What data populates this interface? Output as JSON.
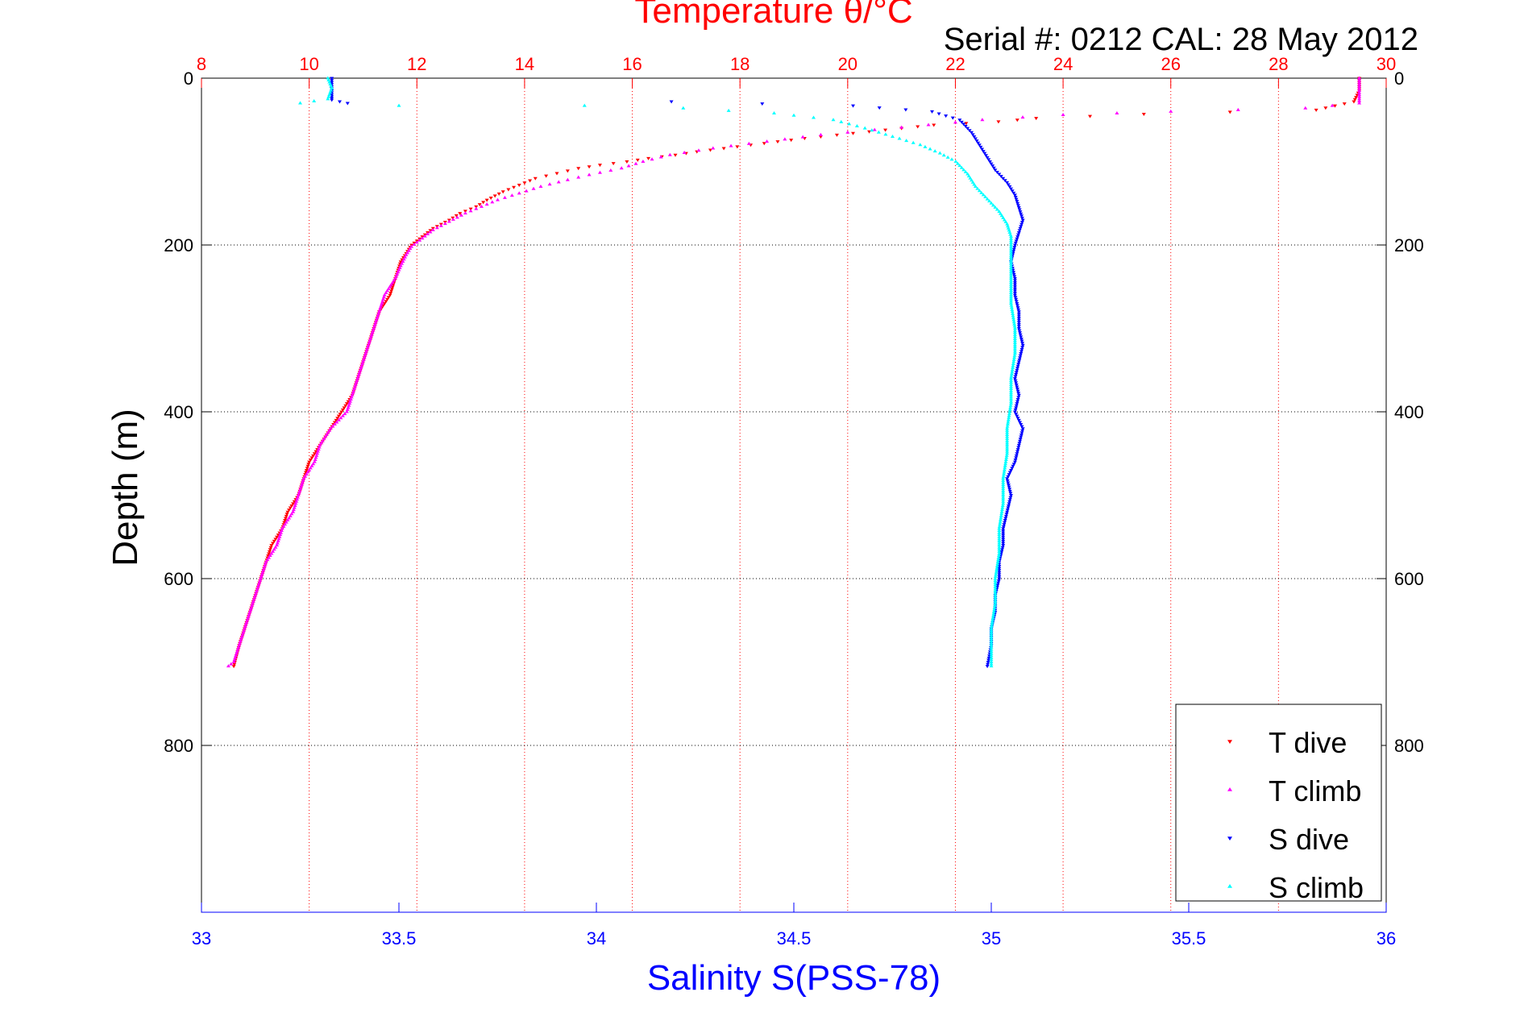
{
  "chart_data": {
    "type": "scatter",
    "title": "Temperature θ/°C",
    "subtitle": "Serial #: 0212  CAL: 28 May 2012",
    "ylabel": "Depth (m)",
    "xlabel": "Salinity S(PSS-78)",
    "temperature_axis": {
      "label": "Temperature θ/°C",
      "range": [
        8,
        30
      ],
      "ticks": [
        8,
        10,
        12,
        14,
        16,
        18,
        20,
        22,
        24,
        26,
        28,
        30
      ],
      "color": "#ff0000"
    },
    "salinity_axis": {
      "label": "Salinity S(PSS-78)",
      "range": [
        33,
        36
      ],
      "ticks": [
        33,
        33.5,
        34,
        34.5,
        35,
        35.5,
        36
      ],
      "color": "#0000ff"
    },
    "depth_axis": {
      "range": [
        0,
        1000
      ],
      "reversed": true,
      "ticks": [
        0,
        200,
        400,
        600,
        800
      ]
    },
    "grid": true,
    "legend_placement": "bottom-right",
    "series": [
      {
        "name": "T dive",
        "axis": "temperature",
        "color": "#ff0000",
        "marker": "triangle-down",
        "points": [
          [
            29.5,
            0
          ],
          [
            29.5,
            15
          ],
          [
            29.4,
            28
          ],
          [
            28.7,
            38
          ],
          [
            25.5,
            43
          ],
          [
            23.5,
            48
          ],
          [
            22.8,
            52
          ],
          [
            21.6,
            56
          ],
          [
            21.0,
            60
          ],
          [
            20.4,
            64
          ],
          [
            19.8,
            68
          ],
          [
            19.2,
            72
          ],
          [
            18.7,
            76
          ],
          [
            18.2,
            80
          ],
          [
            17.7,
            84
          ],
          [
            17.2,
            88
          ],
          [
            16.8,
            92
          ],
          [
            16.3,
            96
          ],
          [
            15.9,
            100
          ],
          [
            15.4,
            104
          ],
          [
            15.0,
            108
          ],
          [
            14.6,
            114
          ],
          [
            14.2,
            120
          ],
          [
            13.9,
            128
          ],
          [
            13.6,
            136
          ],
          [
            13.3,
            146
          ],
          [
            13.1,
            154
          ],
          [
            12.8,
            162
          ],
          [
            12.6,
            170
          ],
          [
            12.3,
            180
          ],
          [
            12.1,
            190
          ],
          [
            11.9,
            200
          ],
          [
            11.8,
            210
          ],
          [
            11.7,
            220
          ],
          [
            11.6,
            240
          ],
          [
            11.5,
            260
          ],
          [
            11.3,
            280
          ],
          [
            11.2,
            300
          ],
          [
            11.1,
            320
          ],
          [
            11.0,
            340
          ],
          [
            10.9,
            360
          ],
          [
            10.8,
            380
          ],
          [
            10.6,
            400
          ],
          [
            10.4,
            420
          ],
          [
            10.2,
            440
          ],
          [
            10.0,
            460
          ],
          [
            9.9,
            480
          ],
          [
            9.8,
            500
          ],
          [
            9.6,
            520
          ],
          [
            9.5,
            540
          ],
          [
            9.3,
            560
          ],
          [
            9.2,
            580
          ],
          [
            9.1,
            600
          ],
          [
            9.0,
            620
          ],
          [
            8.9,
            640
          ],
          [
            8.8,
            660
          ],
          [
            8.7,
            680
          ],
          [
            8.6,
            705
          ]
        ]
      },
      {
        "name": "T climb",
        "axis": "temperature",
        "color": "#ff00ff",
        "marker": "triangle-up",
        "points": [
          [
            29.5,
            0
          ],
          [
            29.5,
            15
          ],
          [
            29.5,
            30
          ],
          [
            28.5,
            36
          ],
          [
            26.0,
            40
          ],
          [
            24.0,
            44
          ],
          [
            22.5,
            50
          ],
          [
            21.5,
            56
          ],
          [
            20.5,
            62
          ],
          [
            19.5,
            68
          ],
          [
            18.5,
            76
          ],
          [
            17.5,
            84
          ],
          [
            16.7,
            92
          ],
          [
            16.2,
            100
          ],
          [
            15.8,
            108
          ],
          [
            15.2,
            116
          ],
          [
            14.8,
            122
          ],
          [
            14.3,
            130
          ],
          [
            13.9,
            138
          ],
          [
            13.5,
            146
          ],
          [
            13.2,
            154
          ],
          [
            12.9,
            162
          ],
          [
            12.6,
            172
          ],
          [
            12.3,
            182
          ],
          [
            12.1,
            192
          ],
          [
            11.9,
            202
          ],
          [
            11.8,
            212
          ],
          [
            11.7,
            225
          ],
          [
            11.6,
            240
          ],
          [
            11.4,
            260
          ],
          [
            11.3,
            280
          ],
          [
            11.2,
            300
          ],
          [
            11.1,
            320
          ],
          [
            11.0,
            340
          ],
          [
            10.9,
            360
          ],
          [
            10.8,
            380
          ],
          [
            10.7,
            400
          ],
          [
            10.4,
            420
          ],
          [
            10.2,
            440
          ],
          [
            10.1,
            460
          ],
          [
            9.9,
            480
          ],
          [
            9.8,
            500
          ],
          [
            9.7,
            520
          ],
          [
            9.5,
            540
          ],
          [
            9.4,
            560
          ],
          [
            9.2,
            580
          ],
          [
            9.1,
            600
          ],
          [
            9.0,
            620
          ],
          [
            8.9,
            640
          ],
          [
            8.8,
            660
          ],
          [
            8.7,
            680
          ],
          [
            8.6,
            700
          ],
          [
            8.5,
            705
          ]
        ]
      },
      {
        "name": "S dive",
        "axis": "salinity",
        "color": "#0000ff",
        "marker": "triangle-down",
        "points": [
          [
            33.33,
            0
          ],
          [
            33.33,
            15
          ],
          [
            33.33,
            26
          ],
          [
            33.37,
            30
          ],
          [
            34.19,
            28
          ],
          [
            34.65,
            33
          ],
          [
            34.85,
            40
          ],
          [
            34.92,
            50
          ],
          [
            34.95,
            65
          ],
          [
            34.97,
            80
          ],
          [
            34.99,
            95
          ],
          [
            35.01,
            110
          ],
          [
            35.04,
            125
          ],
          [
            35.06,
            140
          ],
          [
            35.07,
            155
          ],
          [
            35.08,
            170
          ],
          [
            35.07,
            185
          ],
          [
            35.06,
            200
          ],
          [
            35.05,
            220
          ],
          [
            35.06,
            240
          ],
          [
            35.06,
            260
          ],
          [
            35.07,
            280
          ],
          [
            35.07,
            300
          ],
          [
            35.08,
            320
          ],
          [
            35.07,
            340
          ],
          [
            35.06,
            360
          ],
          [
            35.07,
            380
          ],
          [
            35.06,
            400
          ],
          [
            35.08,
            420
          ],
          [
            35.07,
            440
          ],
          [
            35.06,
            460
          ],
          [
            35.04,
            480
          ],
          [
            35.05,
            500
          ],
          [
            35.04,
            520
          ],
          [
            35.03,
            540
          ],
          [
            35.03,
            560
          ],
          [
            35.02,
            580
          ],
          [
            35.02,
            600
          ],
          [
            35.01,
            620
          ],
          [
            35.01,
            640
          ],
          [
            35.0,
            660
          ],
          [
            35.0,
            680
          ],
          [
            34.99,
            705
          ]
        ]
      },
      {
        "name": "S climb",
        "axis": "salinity",
        "color": "#00ffff",
        "marker": "triangle-up",
        "points": [
          [
            33.32,
            0
          ],
          [
            33.33,
            12
          ],
          [
            33.32,
            25
          ],
          [
            33.25,
            30
          ],
          [
            33.5,
            33
          ],
          [
            33.97,
            33
          ],
          [
            34.22,
            36
          ],
          [
            34.45,
            42
          ],
          [
            34.6,
            50
          ],
          [
            34.68,
            60
          ],
          [
            34.75,
            70
          ],
          [
            34.82,
            80
          ],
          [
            34.87,
            90
          ],
          [
            34.91,
            100
          ],
          [
            34.94,
            115
          ],
          [
            34.96,
            130
          ],
          [
            34.99,
            145
          ],
          [
            35.02,
            160
          ],
          [
            35.04,
            175
          ],
          [
            35.05,
            190
          ],
          [
            35.05,
            210
          ],
          [
            35.05,
            240
          ],
          [
            35.05,
            270
          ],
          [
            35.06,
            300
          ],
          [
            35.06,
            330
          ],
          [
            35.05,
            360
          ],
          [
            35.05,
            390
          ],
          [
            35.04,
            420
          ],
          [
            35.04,
            450
          ],
          [
            35.03,
            480
          ],
          [
            35.03,
            510
          ],
          [
            35.02,
            540
          ],
          [
            35.02,
            570
          ],
          [
            35.01,
            600
          ],
          [
            35.01,
            630
          ],
          [
            35.0,
            660
          ],
          [
            35.0,
            690
          ],
          [
            35.0,
            705
          ]
        ]
      }
    ]
  }
}
